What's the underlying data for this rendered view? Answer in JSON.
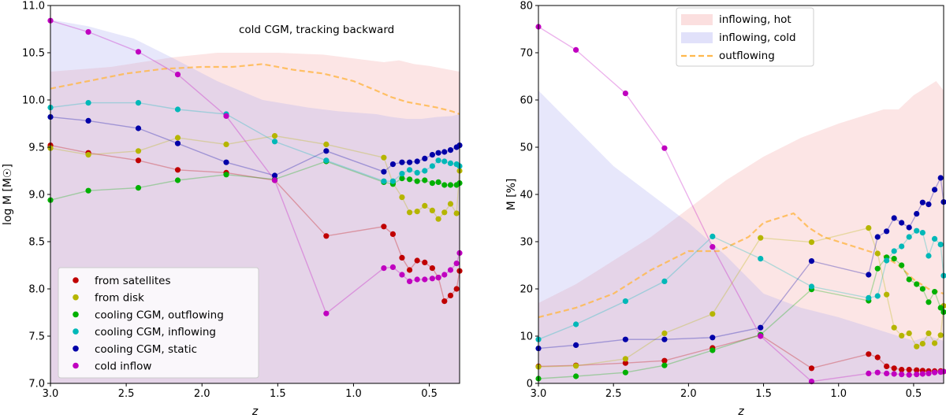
{
  "chart_data": [
    {
      "type": "line",
      "panel": "left",
      "title": "",
      "annotation": "cold CGM, tracking backward",
      "xlabel": "z",
      "ylabel": "log M  [M☉]",
      "xlim": [
        3.0,
        0.3
      ],
      "ylim": [
        7.0,
        11.0
      ],
      "xticks": [
        3.0,
        2.5,
        2.0,
        1.5,
        1.0,
        0.5
      ],
      "xtick_labels": [
        "3.0",
        "2.5",
        "2.0",
        "1.5",
        "1.0",
        "0.5"
      ],
      "yticks": [
        7.0,
        7.5,
        8.0,
        8.5,
        9.0,
        9.5,
        10.0,
        10.5,
        11.0
      ],
      "ytick_labels": [
        "7.0",
        "7.5",
        "8.0",
        "8.5",
        "9.0",
        "9.5",
        "10.0",
        "10.5",
        "11.0"
      ],
      "legend_position": "lower-left",
      "bands": [
        {
          "name": "inflowing, hot (background)",
          "color": "#f4a3a3",
          "x": [
            3.0,
            2.6,
            2.2,
            1.9,
            1.5,
            1.2,
            0.9,
            0.8,
            0.7,
            0.6,
            0.5,
            0.4,
            0.3
          ],
          "lower": [
            7.0,
            7.0,
            7.0,
            7.0,
            7.0,
            7.0,
            7.0,
            7.0,
            7.0,
            7.0,
            7.0,
            7.0,
            7.0
          ],
          "upper": [
            10.3,
            10.35,
            10.45,
            10.5,
            10.5,
            10.48,
            10.42,
            10.4,
            10.42,
            10.38,
            10.36,
            10.33,
            10.3
          ]
        },
        {
          "name": "inflowing, cold (background)",
          "color": "#a9a9f0",
          "x": [
            3.0,
            2.75,
            2.45,
            2.2,
            1.9,
            1.6,
            1.3,
            1.1,
            0.85,
            0.75,
            0.65,
            0.55,
            0.45,
            0.35,
            0.3
          ],
          "lower": [
            7.0,
            7.0,
            7.0,
            7.0,
            7.0,
            7.0,
            7.0,
            7.0,
            7.0,
            7.0,
            7.0,
            7.0,
            7.0,
            7.0,
            7.0
          ],
          "upper": [
            10.85,
            10.78,
            10.65,
            10.45,
            10.2,
            10.0,
            9.92,
            9.88,
            9.85,
            9.82,
            9.8,
            9.8,
            9.82,
            9.83,
            9.85
          ]
        }
      ],
      "reference_line": {
        "name": "outflowing (background)",
        "color": "#ffb84d",
        "x": [
          3.0,
          2.75,
          2.5,
          2.25,
          2.0,
          1.8,
          1.6,
          1.4,
          1.2,
          1.0,
          0.85,
          0.75,
          0.65,
          0.55,
          0.45,
          0.35,
          0.3
        ],
        "y": [
          10.12,
          10.2,
          10.28,
          10.33,
          10.35,
          10.35,
          10.38,
          10.32,
          10.28,
          10.2,
          10.1,
          10.03,
          9.98,
          9.95,
          9.92,
          9.88,
          9.85
        ]
      },
      "series": [
        {
          "name": "from satellites",
          "color": "#c00000",
          "x": [
            3.0,
            2.75,
            2.42,
            2.16,
            1.84,
            1.52,
            1.18,
            0.8,
            0.74,
            0.68,
            0.63,
            0.58,
            0.53,
            0.48,
            0.44,
            0.4,
            0.36,
            0.32,
            0.3
          ],
          "y": [
            9.52,
            9.44,
            9.36,
            9.26,
            9.23,
            9.15,
            8.56,
            8.66,
            8.58,
            8.33,
            8.2,
            8.3,
            8.28,
            8.22,
            8.12,
            7.87,
            7.93,
            8.0,
            8.19
          ]
        },
        {
          "name": "from disk",
          "color": "#b5b500",
          "x": [
            3.0,
            2.75,
            2.42,
            2.16,
            1.84,
            1.52,
            1.18,
            0.8,
            0.74,
            0.68,
            0.63,
            0.58,
            0.53,
            0.48,
            0.44,
            0.4,
            0.36,
            0.32,
            0.3
          ],
          "y": [
            9.49,
            9.42,
            9.46,
            9.6,
            9.53,
            9.62,
            9.53,
            9.39,
            9.12,
            8.97,
            8.81,
            8.82,
            8.88,
            8.83,
            8.74,
            8.81,
            8.9,
            8.8,
            9.25
          ]
        },
        {
          "name": "cooling CGM, outflowing",
          "color": "#00b000",
          "x": [
            3.0,
            2.75,
            2.42,
            2.16,
            1.84,
            1.52,
            1.18,
            0.8,
            0.74,
            0.68,
            0.63,
            0.58,
            0.53,
            0.48,
            0.44,
            0.4,
            0.36,
            0.32,
            0.3
          ],
          "y": [
            8.94,
            9.04,
            9.07,
            9.15,
            9.21,
            9.16,
            9.35,
            9.13,
            9.11,
            9.17,
            9.16,
            9.14,
            9.15,
            9.12,
            9.13,
            9.1,
            9.1,
            9.1,
            9.12
          ]
        },
        {
          "name": "cooling CGM, inflowing",
          "color": "#00b8b8",
          "x": [
            3.0,
            2.75,
            2.42,
            2.16,
            1.84,
            1.52,
            1.18,
            0.8,
            0.74,
            0.68,
            0.63,
            0.58,
            0.53,
            0.48,
            0.44,
            0.4,
            0.36,
            0.32,
            0.3
          ],
          "y": [
            9.92,
            9.97,
            9.97,
            9.9,
            9.85,
            9.56,
            9.36,
            9.14,
            9.14,
            9.22,
            9.26,
            9.23,
            9.25,
            9.3,
            9.36,
            9.35,
            9.33,
            9.32,
            9.3
          ]
        },
        {
          "name": "cooling CGM, static",
          "color": "#0000a8",
          "x": [
            3.0,
            2.75,
            2.42,
            2.16,
            1.84,
            1.52,
            1.18,
            0.8,
            0.74,
            0.68,
            0.63,
            0.58,
            0.53,
            0.48,
            0.44,
            0.4,
            0.36,
            0.32,
            0.3
          ],
          "y": [
            9.82,
            9.78,
            9.7,
            9.54,
            9.34,
            9.2,
            9.46,
            9.24,
            9.32,
            9.34,
            9.34,
            9.35,
            9.38,
            9.42,
            9.44,
            9.45,
            9.47,
            9.5,
            9.52
          ]
        },
        {
          "name": "cold inflow",
          "color": "#c000c0",
          "x": [
            3.0,
            2.75,
            2.42,
            2.16,
            1.84,
            1.52,
            1.18,
            0.8,
            0.74,
            0.68,
            0.63,
            0.58,
            0.53,
            0.48,
            0.44,
            0.4,
            0.36,
            0.32,
            0.3
          ],
          "y": [
            10.84,
            10.72,
            10.51,
            10.27,
            9.83,
            9.15,
            7.74,
            8.22,
            8.23,
            8.15,
            8.08,
            8.1,
            8.1,
            8.11,
            8.12,
            8.15,
            8.2,
            8.27,
            8.38
          ]
        }
      ]
    },
    {
      "type": "line",
      "panel": "right",
      "title": "",
      "xlabel": "z",
      "ylabel": "M [%]",
      "xlim": [
        3.0,
        0.3
      ],
      "ylim": [
        0,
        80
      ],
      "xticks": [
        3.0,
        2.5,
        2.0,
        1.5,
        1.0,
        0.5
      ],
      "xtick_labels": [
        "3.0",
        "2.5",
        "2.0",
        "1.5",
        "1.0",
        "0.5"
      ],
      "yticks": [
        0,
        10,
        20,
        30,
        40,
        50,
        60,
        70,
        80
      ],
      "ytick_labels": [
        "0",
        "10",
        "20",
        "30",
        "40",
        "50",
        "60",
        "70",
        "80"
      ],
      "legend_position": "top-center",
      "legend": [
        {
          "label": "inflowing, hot",
          "kind": "band",
          "color": "#f4a3a3"
        },
        {
          "label": "inflowing, cold",
          "kind": "band",
          "color": "#a9a9f0"
        },
        {
          "label": "outflowing",
          "kind": "dashed-line",
          "color": "#ffb84d"
        }
      ],
      "bands": [
        {
          "name": "inflowing, hot",
          "color": "#f4a3a3",
          "x": [
            3.0,
            2.75,
            2.5,
            2.25,
            2.0,
            1.75,
            1.5,
            1.25,
            1.0,
            0.8,
            0.7,
            0.6,
            0.5,
            0.4,
            0.35,
            0.3
          ],
          "lower": [
            0,
            0,
            0,
            0,
            0,
            0,
            0,
            0,
            0,
            0,
            0,
            0,
            0,
            0,
            0,
            0
          ],
          "upper": [
            17,
            21,
            26,
            31,
            37,
            43,
            48,
            52,
            55,
            57,
            58,
            58,
            61,
            63,
            64,
            62
          ]
        },
        {
          "name": "inflowing, cold",
          "color": "#a9a9f0",
          "x": [
            3.0,
            2.75,
            2.5,
            2.25,
            2.0,
            1.75,
            1.5,
            1.25,
            1.0,
            0.8,
            0.7,
            0.6,
            0.5,
            0.4,
            0.3
          ],
          "lower": [
            0,
            0,
            0,
            0,
            0,
            0,
            0,
            0,
            0,
            0,
            0,
            0,
            0,
            0,
            0
          ],
          "upper": [
            62,
            54,
            46,
            40,
            34,
            27,
            19,
            16,
            14,
            12,
            11,
            10,
            9,
            10,
            9
          ]
        }
      ],
      "reference_line": {
        "name": "outflowing",
        "color": "#ffb84d",
        "x": [
          3.0,
          2.75,
          2.5,
          2.25,
          2.0,
          1.8,
          1.6,
          1.5,
          1.4,
          1.3,
          1.2,
          1.1,
          1.0,
          0.9,
          0.8,
          0.7,
          0.6,
          0.5,
          0.4,
          0.3
        ],
        "y": [
          14,
          16,
          19,
          24,
          28,
          28,
          31,
          34,
          35,
          36,
          33,
          31,
          30,
          29,
          28,
          27,
          25,
          22,
          20,
          19
        ]
      },
      "series": [
        {
          "name": "from satellites",
          "color": "#c00000",
          "x": [
            3.0,
            2.75,
            2.42,
            2.16,
            1.84,
            1.52,
            1.18,
            0.8,
            0.74,
            0.68,
            0.63,
            0.58,
            0.53,
            0.48,
            0.44,
            0.4,
            0.36,
            0.32,
            0.3
          ],
          "y": [
            3.6,
            3.8,
            4.3,
            4.8,
            7.5,
            10.2,
            3.2,
            6.2,
            5.5,
            3.6,
            3.2,
            2.9,
            2.9,
            2.8,
            2.7,
            2.6,
            2.6,
            2.6,
            2.5
          ]
        },
        {
          "name": "from disk",
          "color": "#b5b500",
          "x": [
            3.0,
            2.75,
            2.42,
            2.16,
            1.84,
            1.52,
            1.18,
            0.8,
            0.74,
            0.68,
            0.63,
            0.58,
            0.53,
            0.48,
            0.44,
            0.4,
            0.36,
            0.32,
            0.3
          ],
          "y": [
            3.5,
            3.7,
            5.2,
            10.6,
            14.7,
            30.8,
            29.9,
            32.9,
            27.5,
            18.8,
            11.8,
            10.1,
            10.6,
            7.8,
            8.4,
            10.6,
            8.5,
            10.2,
            16.4
          ]
        },
        {
          "name": "cooling CGM, outflowing",
          "color": "#00b000",
          "x": [
            3.0,
            2.75,
            2.42,
            2.16,
            1.84,
            1.52,
            1.18,
            0.8,
            0.74,
            0.68,
            0.63,
            0.58,
            0.53,
            0.48,
            0.44,
            0.4,
            0.36,
            0.32,
            0.3
          ],
          "y": [
            1.0,
            1.5,
            2.3,
            3.8,
            7.0,
            10.3,
            19.9,
            17.5,
            24.3,
            26.7,
            26.4,
            25.0,
            22.0,
            21.0,
            20.0,
            17.2,
            19.4,
            16.0,
            15.1
          ]
        },
        {
          "name": "cooling CGM, inflowing",
          "color": "#00b8b8",
          "x": [
            3.0,
            2.75,
            2.42,
            2.16,
            1.84,
            1.52,
            1.18,
            0.8,
            0.74,
            0.68,
            0.63,
            0.58,
            0.53,
            0.48,
            0.44,
            0.4,
            0.36,
            0.32,
            0.3
          ],
          "y": [
            9.3,
            12.5,
            17.4,
            21.6,
            31.1,
            26.4,
            20.5,
            18.1,
            18.5,
            26.0,
            28.0,
            29.0,
            31.0,
            32.3,
            31.9,
            27.0,
            30.6,
            29.4,
            22.8
          ]
        },
        {
          "name": "cooling CGM, static",
          "color": "#0000a8",
          "x": [
            3.0,
            2.75,
            2.42,
            2.16,
            1.84,
            1.52,
            1.18,
            0.8,
            0.74,
            0.68,
            0.63,
            0.58,
            0.53,
            0.48,
            0.44,
            0.4,
            0.36,
            0.32,
            0.3
          ],
          "y": [
            7.4,
            8.1,
            9.3,
            9.3,
            9.7,
            11.8,
            25.9,
            23.0,
            31.0,
            32.2,
            35.0,
            34.0,
            33.0,
            35.9,
            38.3,
            37.9,
            41.0,
            43.5,
            38.4
          ]
        },
        {
          "name": "cold inflow",
          "color": "#c000c0",
          "x": [
            3.0,
            2.75,
            2.42,
            2.16,
            1.84,
            1.52,
            1.18,
            0.8,
            0.74,
            0.68,
            0.63,
            0.58,
            0.53,
            0.48,
            0.44,
            0.4,
            0.36,
            0.32,
            0.3
          ],
          "y": [
            75.5,
            70.6,
            61.4,
            49.8,
            28.9,
            10.0,
            0.4,
            2.1,
            2.3,
            2.1,
            2.0,
            1.9,
            1.8,
            1.9,
            2.0,
            2.1,
            2.3,
            2.4,
            2.5
          ]
        }
      ]
    }
  ]
}
